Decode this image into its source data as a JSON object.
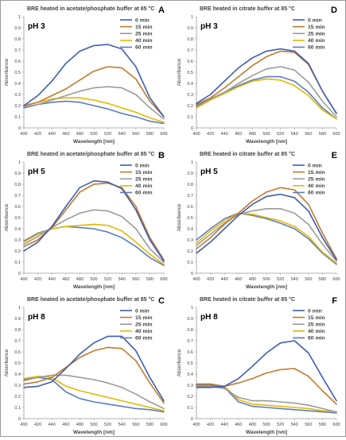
{
  "charts": {
    "common": {
      "xlabel": "Wavelength [nm]",
      "ylabel": "Absorbance",
      "series_names": [
        "0 min",
        "15 min",
        "25 min",
        "40 min",
        "60 min"
      ],
      "series_colors": [
        "#3f5bb5",
        "#c07a2c",
        "#9b9b9b",
        "#e6b800",
        "#5b7cc2"
      ],
      "x_ticks": [
        "400",
        "420",
        "440",
        "460",
        "480",
        "500",
        "520",
        "540",
        "560",
        "580",
        "600"
      ],
      "y_ticks": [
        "0",
        "0.1",
        "0.2",
        "0.3",
        "0.4",
        "0.5",
        "0.6",
        "0.7",
        "0.8",
        "0.9",
        "1"
      ]
    }
  },
  "chart_data": [
    {
      "type": "line",
      "panel": "A",
      "title": "BRE heated in acetate/phosphate buffer at 85 °C",
      "label": "pH 3",
      "xlabel": "Wavelength [nm]",
      "ylabel": "Absorbance",
      "xlim": [
        400,
        600
      ],
      "ylim": [
        0,
        1
      ],
      "grid": false,
      "legend": "top-right",
      "x": [
        400,
        420,
        440,
        460,
        480,
        500,
        520,
        540,
        560,
        580,
        600
      ],
      "series": [
        {
          "name": "0 min",
          "values": [
            0.2,
            0.29,
            0.42,
            0.58,
            0.69,
            0.74,
            0.75,
            0.71,
            0.55,
            0.27,
            0.1
          ]
        },
        {
          "name": "15 min",
          "values": [
            0.2,
            0.23,
            0.29,
            0.35,
            0.43,
            0.51,
            0.55,
            0.54,
            0.44,
            0.24,
            0.1
          ]
        },
        {
          "name": "25 min",
          "values": [
            0.19,
            0.21,
            0.25,
            0.29,
            0.33,
            0.36,
            0.37,
            0.36,
            0.3,
            0.18,
            0.08
          ]
        },
        {
          "name": "40 min",
          "values": [
            0.2,
            0.23,
            0.26,
            0.27,
            0.27,
            0.25,
            0.22,
            0.18,
            0.14,
            0.09,
            0.05
          ]
        },
        {
          "name": "60 min",
          "values": [
            0.18,
            0.21,
            0.23,
            0.24,
            0.23,
            0.2,
            0.17,
            0.13,
            0.1,
            0.06,
            0.04
          ]
        }
      ]
    },
    {
      "type": "line",
      "panel": "D",
      "title": "BRE heated in citrate buffer at 85 °C",
      "label": "pH 3",
      "xlabel": "Wavelength [nm]",
      "ylabel": "Absorbance",
      "xlim": [
        400,
        600
      ],
      "ylim": [
        0,
        1
      ],
      "grid": false,
      "legend": "top-right",
      "x": [
        400,
        420,
        440,
        460,
        480,
        500,
        520,
        540,
        560,
        580,
        600
      ],
      "series": [
        {
          "name": "0 min",
          "values": [
            0.22,
            0.3,
            0.42,
            0.54,
            0.63,
            0.69,
            0.71,
            0.69,
            0.58,
            0.33,
            0.13
          ]
        },
        {
          "name": "15 min",
          "values": [
            0.21,
            0.27,
            0.36,
            0.46,
            0.56,
            0.64,
            0.69,
            0.68,
            0.57,
            0.33,
            0.13
          ]
        },
        {
          "name": "25 min",
          "values": [
            0.19,
            0.26,
            0.32,
            0.4,
            0.47,
            0.53,
            0.55,
            0.52,
            0.41,
            0.24,
            0.1
          ]
        },
        {
          "name": "40 min",
          "values": [
            0.18,
            0.25,
            0.31,
            0.37,
            0.42,
            0.44,
            0.43,
            0.38,
            0.29,
            0.16,
            0.08
          ]
        },
        {
          "name": "60 min",
          "values": [
            0.2,
            0.26,
            0.32,
            0.38,
            0.43,
            0.46,
            0.46,
            0.42,
            0.32,
            0.18,
            0.08
          ]
        }
      ]
    },
    {
      "type": "line",
      "panel": "B",
      "title": "BRE heated in acetate/phosphate buffer at 85 °C",
      "label": "pH 5",
      "xlabel": "Wavelength [nm]",
      "ylabel": "Absorbance",
      "xlim": [
        400,
        600
      ],
      "ylim": [
        0,
        1
      ],
      "grid": false,
      "legend": "top-right",
      "x": [
        400,
        420,
        440,
        460,
        480,
        500,
        520,
        540,
        560,
        580,
        600
      ],
      "series": [
        {
          "name": "0 min",
          "values": [
            0.2,
            0.28,
            0.42,
            0.6,
            0.77,
            0.83,
            0.82,
            0.76,
            0.57,
            0.3,
            0.11
          ]
        },
        {
          "name": "15 min",
          "values": [
            0.24,
            0.3,
            0.41,
            0.57,
            0.73,
            0.8,
            0.81,
            0.77,
            0.6,
            0.32,
            0.12
          ]
        },
        {
          "name": "25 min",
          "values": [
            0.26,
            0.33,
            0.41,
            0.48,
            0.54,
            0.57,
            0.56,
            0.51,
            0.4,
            0.22,
            0.1
          ]
        },
        {
          "name": "40 min",
          "values": [
            0.28,
            0.35,
            0.4,
            0.42,
            0.43,
            0.44,
            0.43,
            0.38,
            0.28,
            0.17,
            0.08
          ]
        },
        {
          "name": "60 min",
          "values": [
            0.29,
            0.36,
            0.4,
            0.42,
            0.41,
            0.4,
            0.37,
            0.32,
            0.24,
            0.14,
            0.07
          ]
        }
      ]
    },
    {
      "type": "line",
      "panel": "E",
      "title": "BRE heated in citrate buffer at 85 °C",
      "label": "pH 5",
      "xlabel": "Wavelength [nm]",
      "ylabel": "Absorbance",
      "xlim": [
        400,
        600
      ],
      "ylim": [
        0,
        1
      ],
      "grid": false,
      "legend": "top-right",
      "x": [
        400,
        420,
        440,
        460,
        480,
        500,
        520,
        540,
        560,
        580,
        600
      ],
      "series": [
        {
          "name": "0 min",
          "values": [
            0.18,
            0.28,
            0.4,
            0.52,
            0.62,
            0.69,
            0.71,
            0.68,
            0.56,
            0.32,
            0.12
          ]
        },
        {
          "name": "15 min",
          "values": [
            0.22,
            0.32,
            0.44,
            0.54,
            0.65,
            0.73,
            0.77,
            0.75,
            0.62,
            0.36,
            0.13
          ]
        },
        {
          "name": "25 min",
          "values": [
            0.25,
            0.35,
            0.45,
            0.53,
            0.56,
            0.58,
            0.58,
            0.54,
            0.44,
            0.26,
            0.11
          ]
        },
        {
          "name": "40 min",
          "values": [
            0.27,
            0.38,
            0.47,
            0.54,
            0.53,
            0.5,
            0.47,
            0.42,
            0.33,
            0.19,
            0.09
          ]
        },
        {
          "name": "60 min",
          "values": [
            0.3,
            0.4,
            0.49,
            0.54,
            0.52,
            0.49,
            0.45,
            0.4,
            0.31,
            0.18,
            0.08
          ]
        }
      ]
    },
    {
      "type": "line",
      "panel": "C",
      "title": "BRE heated in acetate/phosphate buffer at 85 °C",
      "label": "pH 8",
      "xlabel": "Wavelength [nm]",
      "ylabel": "Absorbance",
      "xlim": [
        400,
        600
      ],
      "ylim": [
        0,
        1
      ],
      "grid": false,
      "legend": "top-right",
      "x": [
        400,
        420,
        440,
        460,
        480,
        500,
        520,
        540,
        560,
        580,
        600
      ],
      "series": [
        {
          "name": "0 min",
          "values": [
            0.28,
            0.29,
            0.33,
            0.45,
            0.58,
            0.68,
            0.74,
            0.74,
            0.61,
            0.37,
            0.16
          ]
        },
        {
          "name": "15 min",
          "values": [
            0.31,
            0.33,
            0.37,
            0.46,
            0.55,
            0.61,
            0.64,
            0.63,
            0.52,
            0.32,
            0.14
          ]
        },
        {
          "name": "25 min",
          "values": [
            0.34,
            0.37,
            0.39,
            0.39,
            0.37,
            0.35,
            0.32,
            0.28,
            0.22,
            0.15,
            0.09
          ]
        },
        {
          "name": "40 min",
          "values": [
            0.36,
            0.38,
            0.37,
            0.29,
            0.25,
            0.22,
            0.19,
            0.16,
            0.13,
            0.1,
            0.07
          ]
        },
        {
          "name": "60 min",
          "values": [
            0.35,
            0.37,
            0.35,
            0.24,
            0.18,
            0.15,
            0.13,
            0.11,
            0.09,
            0.08,
            0.06
          ]
        }
      ]
    },
    {
      "type": "line",
      "panel": "F",
      "title": "BRE heated in citrate buffer at 85 °C",
      "label": "pH 8",
      "xlabel": "Wavelength [nm]",
      "ylabel": "Absorbance",
      "xlim": [
        400,
        600
      ],
      "ylim": [
        0,
        1
      ],
      "grid": false,
      "legend": "top-right",
      "x": [
        400,
        420,
        440,
        460,
        480,
        500,
        520,
        540,
        560,
        580,
        600
      ],
      "series": [
        {
          "name": "0 min",
          "values": [
            0.28,
            0.28,
            0.29,
            0.36,
            0.47,
            0.59,
            0.68,
            0.7,
            0.59,
            0.37,
            0.16
          ]
        },
        {
          "name": "15 min",
          "values": [
            0.31,
            0.31,
            0.29,
            0.32,
            0.36,
            0.41,
            0.44,
            0.45,
            0.38,
            0.25,
            0.13
          ]
        },
        {
          "name": "25 min",
          "values": [
            0.29,
            0.29,
            0.27,
            0.19,
            0.16,
            0.16,
            0.15,
            0.14,
            0.12,
            0.09,
            0.06
          ]
        },
        {
          "name": "40 min",
          "values": [
            0.31,
            0.31,
            0.29,
            0.17,
            0.13,
            0.12,
            0.11,
            0.1,
            0.09,
            0.07,
            0.06
          ]
        },
        {
          "name": "60 min",
          "values": [
            0.3,
            0.3,
            0.28,
            0.15,
            0.11,
            0.1,
            0.09,
            0.08,
            0.07,
            0.06,
            0.05
          ]
        }
      ]
    }
  ]
}
